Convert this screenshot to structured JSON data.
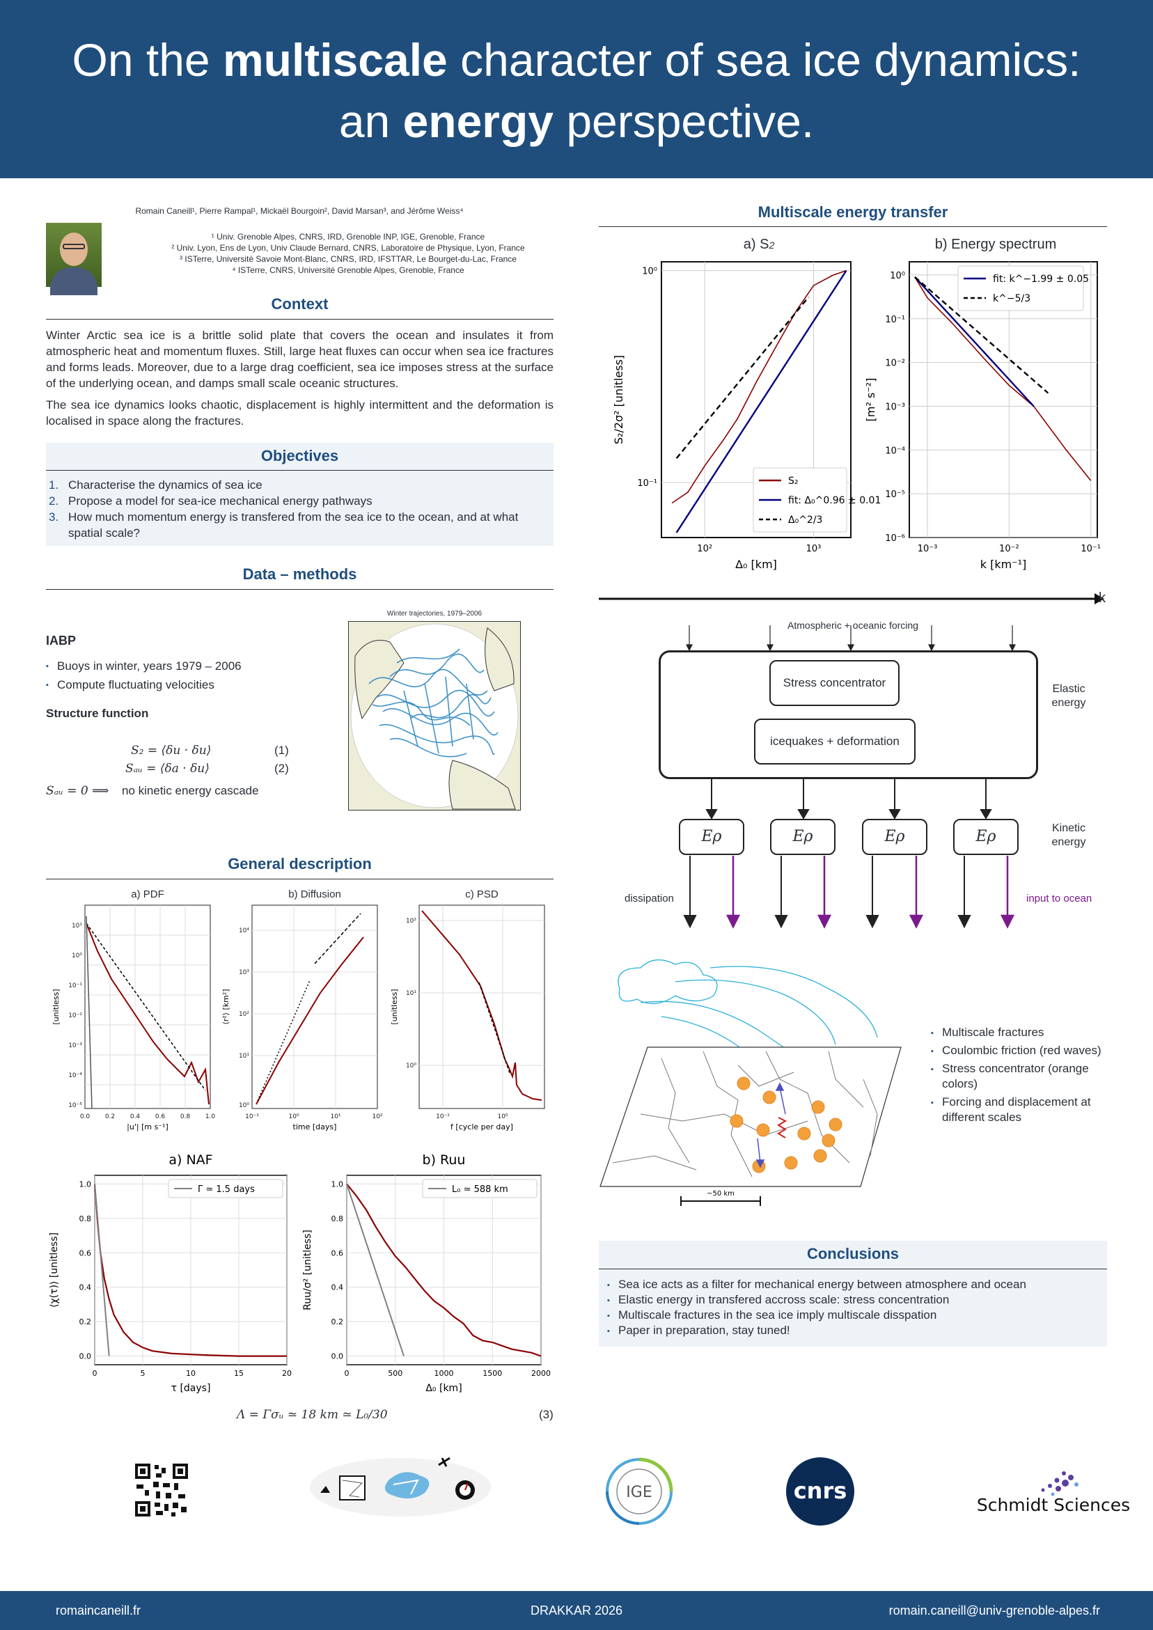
{
  "header": {
    "title_part1": "On the ",
    "title_bold1": "multiscale",
    "title_part2": " character of sea ice dynamics:",
    "title_part3": "an ",
    "title_bold2": "energy",
    "title_part4": " perspective."
  },
  "authors": {
    "line": "Romain Caneill¹, Pierre Rampal¹, Mickaël Bourgoin², David Marsan³, and Jérôme Weiss⁴",
    "affiliations": [
      "¹ Univ. Grenoble Alpes, CNRS, IRD, Grenoble INP, IGE, Grenoble, France",
      "² Univ. Lyon, Ens de Lyon, Univ Claude Bernard, CNRS, Laboratoire de Physique, Lyon, France",
      "³ ISTerre, Université Savoie Mont-Blanc, CNRS, IRD, IFSTTAR, Le Bourget-du-Lac, France",
      "⁴ ISTerre, CNRS, Université Grenoble Alpes, Grenoble, France"
    ]
  },
  "context": {
    "title": "Context",
    "p1": "Winter Arctic sea ice is a brittle solid plate that covers the ocean and insulates it from atmospheric heat and momentum fluxes. Still, large heat fluxes can occur when sea ice fractures and forms leads. Moreover, due to a large drag coefficient, sea ice imposes stress at the surface of the underlying ocean, and damps small scale oceanic structures.",
    "p2": "The sea ice dynamics looks chaotic, displacement is highly intermittent and the deformation is localised in space along the fractures."
  },
  "objectives": {
    "title": "Objectives",
    "items": [
      {
        "n": "1.",
        "text": "Characterise the dynamics of sea ice"
      },
      {
        "n": "2.",
        "text": "Propose a model for sea-ice mechanical energy pathways"
      },
      {
        "n": "3.",
        "text": "How much momentum energy is transfered from the sea ice to the ocean, and at what spatial scale?"
      }
    ]
  },
  "methods": {
    "title": "Data – methods",
    "iabp_title": "IABP",
    "iabp_items": [
      "Buoys in winter, years 1979 – 2006",
      "Compute fluctuating velocities"
    ],
    "structure_title": "Structure function",
    "eq1": "S₂ = ⟨δu · δu⟩",
    "eq1_num": "(1)",
    "eq2": "Sₐᵤ = ⟨δa · δu⟩",
    "eq2_num": "(2)",
    "eq3_lhs": "Sₐᵤ = 0 ⟹",
    "eq3_text": "no kinetic energy cascade",
    "map_title": "Winter trajectories, 1979–2006"
  },
  "general": {
    "title": "General description",
    "panel_titles": [
      "a) PDF",
      "b) Diffusion",
      "c) PSD"
    ],
    "panel_xlabels": [
      "|u'| [m s⁻¹]",
      "time [days]",
      "f [cycle per day]"
    ],
    "panel_ylabels": [
      "[unitless]",
      "⟨r²⟩ [km²]",
      "[unitless]"
    ],
    "pdf_xticks": [
      "0.0",
      "0.2",
      "0.4",
      "0.6",
      "0.8",
      "1.0"
    ],
    "pdf_yticks": [
      "10¹",
      "10⁰",
      "10⁻¹",
      "10⁻²",
      "10⁻³",
      "10⁻⁴",
      "10⁻⁵"
    ],
    "diff_xticks": [
      "10⁻¹",
      "10⁰",
      "10¹",
      "10²"
    ],
    "diff_yticks": [
      "10⁴",
      "10³",
      "10²",
      "10¹",
      "10⁰"
    ],
    "psd_xticks": [
      "10⁻¹",
      "10⁰"
    ],
    "psd_yticks": [
      "10²",
      "10¹",
      "10⁰"
    ],
    "naf_title": "a) NAF",
    "naf_legend": "Γ ≃ 1.5 days",
    "naf_xlabel": "τ [days]",
    "naf_ylabel": "⟨χ(τ)⟩ [unitless]",
    "ruu_title": "b) R",
    "ruu_title_sub": "uu",
    "ruu_legend": "L₀ ≃ 588 km",
    "ruu_xlabel": "Δ₀ [km]",
    "ruu_ylabel": "Ruu/σ² [unitless]",
    "eq_lambda": "Λ = Γσᵤ ≃ 18 km ≃ L₀/30",
    "eq_lambda_num": "(3)"
  },
  "chart_data": [
    {
      "type": "line",
      "title": "a) NAF",
      "xlabel": "τ [days]",
      "ylabel": "⟨χ(τ)⟩ [unitless]",
      "xlim": [
        0,
        20
      ],
      "ylim": [
        -0.05,
        1.05
      ],
      "xticks": [
        0,
        5,
        10,
        15,
        20
      ],
      "yticks": [
        0.0,
        0.2,
        0.4,
        0.6,
        0.8,
        1.0
      ],
      "series": [
        {
          "name": "NAF",
          "color": "#8b0000",
          "x": [
            0,
            0.3,
            0.6,
            1,
            1.5,
            2,
            3,
            4,
            5,
            6,
            8,
            10,
            12,
            15,
            20
          ],
          "values": [
            1.0,
            0.78,
            0.6,
            0.45,
            0.33,
            0.24,
            0.14,
            0.08,
            0.05,
            0.03,
            0.015,
            0.01,
            0.005,
            0.0,
            0.0
          ]
        },
        {
          "name": "Γ ≃ 1.5 days",
          "color": "#808080",
          "x": [
            0,
            1.5
          ],
          "values": [
            1.0,
            0.0
          ]
        }
      ]
    },
    {
      "type": "line",
      "title": "b) Ruu",
      "xlabel": "Δ₀ [km]",
      "ylabel": "Ruu/σ² [unitless]",
      "xlim": [
        0,
        2000
      ],
      "ylim": [
        -0.05,
        1.05
      ],
      "xticks": [
        0,
        500,
        1000,
        1500,
        2000
      ],
      "yticks": [
        0.0,
        0.2,
        0.4,
        0.6,
        0.8,
        1.0
      ],
      "series": [
        {
          "name": "Ruu",
          "color": "#8b0000",
          "x": [
            0,
            100,
            200,
            300,
            400,
            500,
            600,
            700,
            800,
            900,
            1000,
            1100,
            1200,
            1300,
            1400,
            1500,
            1600,
            1700,
            1800,
            1900,
            2000
          ],
          "values": [
            1.0,
            0.93,
            0.85,
            0.75,
            0.66,
            0.58,
            0.52,
            0.45,
            0.38,
            0.32,
            0.28,
            0.23,
            0.19,
            0.12,
            0.09,
            0.08,
            0.06,
            0.04,
            0.03,
            0.02,
            0.0
          ]
        },
        {
          "name": "L₀ ≃ 588 km",
          "color": "#808080",
          "x": [
            0,
            588
          ],
          "values": [
            1.0,
            0.0
          ]
        }
      ]
    },
    {
      "type": "line",
      "title": "a) S2",
      "xlabel": "Δ₀ [km]",
      "ylabel": "S₂/2σ² [unitless]",
      "xscale": "log",
      "yscale": "log",
      "xlim": [
        40,
        2200
      ],
      "ylim": [
        0.055,
        1.1
      ],
      "series": [
        {
          "name": "S₂",
          "color": "#8b0000",
          "x": [
            50,
            70,
            100,
            150,
            200,
            300,
            500,
            700,
            1000,
            1500,
            2000
          ],
          "values": [
            0.08,
            0.09,
            0.12,
            0.16,
            0.2,
            0.3,
            0.48,
            0.65,
            0.85,
            0.95,
            1.0
          ]
        },
        {
          "name": "fit: Δ₀^0.96±0.01",
          "color": "#00007f",
          "x": [
            55,
            2000
          ],
          "values": [
            0.058,
            1.0
          ]
        },
        {
          "name": "Δ₀^2/3",
          "color": "#000000",
          "x": [
            55,
            900
          ],
          "values": [
            0.13,
            0.75
          ]
        }
      ]
    },
    {
      "type": "line",
      "title": "b) Energy spectrum",
      "xlabel": "k [km⁻¹]",
      "ylabel": "[m² s⁻²]",
      "xscale": "log",
      "yscale": "log",
      "xlim": [
        0.0006,
        0.12
      ],
      "ylim": [
        1e-06,
        2
      ],
      "series": [
        {
          "name": "spectrum",
          "color": "#8b0000",
          "x": [
            0.0007,
            0.001,
            0.002,
            0.005,
            0.01,
            0.02,
            0.05,
            0.1
          ],
          "values": [
            0.9,
            0.3,
            0.08,
            0.012,
            0.003,
            0.001,
            0.0001,
            2e-05
          ]
        },
        {
          "name": "fit: k^−1.99±0.05",
          "color": "#00007f",
          "x": [
            0.0007,
            0.02
          ],
          "values": [
            0.9,
            0.001
          ]
        },
        {
          "name": "k^−5/3",
          "color": "#000000",
          "x": [
            0.0007,
            0.03
          ],
          "values": [
            0.9,
            0.002
          ]
        }
      ]
    }
  ],
  "energy": {
    "title": "Multiscale energy transfer",
    "s2_title": "a) S",
    "s2_title_sub": "2",
    "spec_title": "b) Energy spectrum",
    "s2_ylabel": "S₂/2σ² [unitless]",
    "s2_xlabel": "Δ₀ [km]",
    "s2_yticks": [
      "10⁰",
      "10⁻¹"
    ],
    "s2_xticks": [
      "10²",
      "10³"
    ],
    "s2_legend": [
      "S₂",
      "fit: Δ₀^0.96 ± 0.01",
      "Δ₀^2/3"
    ],
    "spec_ylabel": "[m² s⁻²]",
    "spec_xlabel": "k [km⁻¹]",
    "spec_yticks": [
      "10⁰",
      "10⁻¹",
      "10⁻²",
      "10⁻³",
      "10⁻⁴",
      "10⁻⁵",
      "10⁻⁶"
    ],
    "spec_xticks": [
      "10⁻³",
      "10⁻²",
      "10⁻¹"
    ],
    "spec_legend": [
      "fit: k^−1.99 ± 0.05",
      "k^−5/3"
    ],
    "k_label": "k"
  },
  "diagram": {
    "forcing": "Atmospheric + oceanic forcing",
    "stress": "Stress concentrator",
    "icequakes": "icequakes + deformation",
    "elastic": "Elastic energy",
    "kinetic": "Kinetic energy",
    "e_rho": "Eρ",
    "dissipation": "dissipation",
    "input_ocean": "input to ocean",
    "scale": "~50 km",
    "bullets": [
      "Multiscale fractures",
      "Coulombic friction (red waves)",
      "Stress concentrator (orange colors)",
      "Forcing and displacement at different scales"
    ]
  },
  "conclusions": {
    "title": "Conclusions",
    "items": [
      "Sea ice acts as a filter for mechanical energy between atmosphere and ocean",
      "Elastic energy in transfered accross scale: stress concentration",
      "Multiscale fractures in the sea ice imply multiscale disspation",
      "Paper in preparation, stay tuned!"
    ]
  },
  "logos": {
    "ige": "IGE",
    "cnrs": "cnrs",
    "schmidt": "Schmidt Sciences"
  },
  "footer": {
    "left": "romaincaneill.fr",
    "center": "DRAKKAR 2026",
    "right": "romain.caneill@univ-grenoble-alpes.fr"
  },
  "colors": {
    "brand": "#1f4e7d",
    "series_red": "#8b0000",
    "series_blue": "#00007f",
    "purple": "#7a1a8c"
  }
}
